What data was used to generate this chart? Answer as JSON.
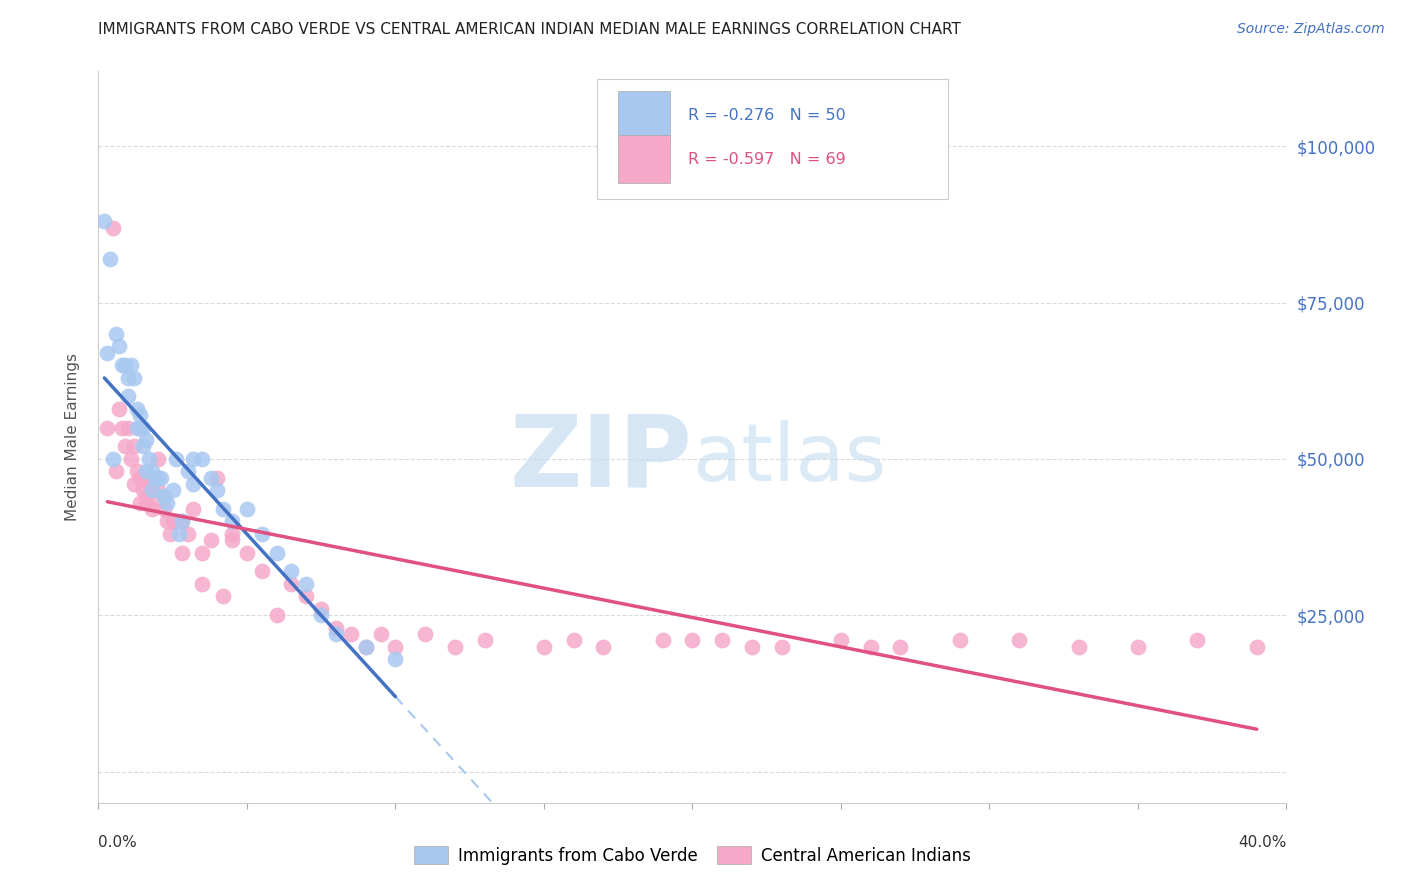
{
  "title": "IMMIGRANTS FROM CABO VERDE VS CENTRAL AMERICAN INDIAN MEDIAN MALE EARNINGS CORRELATION CHART",
  "source": "Source: ZipAtlas.com",
  "ylabel": "Median Male Earnings",
  "x_range": [
    0.0,
    0.4
  ],
  "y_range": [
    -5000,
    112000
  ],
  "y_ticks": [
    0,
    25000,
    50000,
    75000,
    100000
  ],
  "y_tick_labels": [
    "",
    "$25,000",
    "$50,000",
    "$75,000",
    "$100,000"
  ],
  "series1_color": "#A8C8F0",
  "series2_color": "#F5A8C8",
  "series1_line_color": "#4472C4",
  "series2_line_color": "#E05080",
  "dashed_line_color": "#A8C8F0",
  "right_label_color": "#4472C4",
  "cabo_verde_x": [
    0.002,
    0.004,
    0.006,
    0.007,
    0.008,
    0.009,
    0.01,
    0.011,
    0.012,
    0.013,
    0.013,
    0.014,
    0.015,
    0.015,
    0.016,
    0.017,
    0.018,
    0.019,
    0.02,
    0.021,
    0.022,
    0.023,
    0.025,
    0.026,
    0.028,
    0.03,
    0.032,
    0.035,
    0.038,
    0.04,
    0.042,
    0.045,
    0.05,
    0.055,
    0.06,
    0.065,
    0.07,
    0.075,
    0.08,
    0.09,
    0.003,
    0.005,
    0.01,
    0.014,
    0.016,
    0.018,
    0.022,
    0.027,
    0.032,
    0.1
  ],
  "cabo_verde_y": [
    88000,
    82000,
    70000,
    68000,
    65000,
    65000,
    63000,
    65000,
    63000,
    58000,
    55000,
    57000,
    55000,
    52000,
    53000,
    50000,
    48000,
    47000,
    47000,
    47000,
    44000,
    43000,
    45000,
    50000,
    40000,
    48000,
    50000,
    50000,
    47000,
    45000,
    42000,
    40000,
    42000,
    38000,
    35000,
    32000,
    30000,
    25000,
    22000,
    20000,
    67000,
    50000,
    60000,
    55000,
    48000,
    45000,
    44000,
    38000,
    46000,
    18000
  ],
  "central_american_x": [
    0.003,
    0.005,
    0.007,
    0.008,
    0.009,
    0.01,
    0.011,
    0.012,
    0.013,
    0.014,
    0.014,
    0.015,
    0.015,
    0.016,
    0.017,
    0.018,
    0.019,
    0.02,
    0.022,
    0.024,
    0.025,
    0.026,
    0.028,
    0.03,
    0.032,
    0.035,
    0.038,
    0.04,
    0.042,
    0.045,
    0.05,
    0.055,
    0.06,
    0.065,
    0.07,
    0.075,
    0.08,
    0.085,
    0.09,
    0.095,
    0.1,
    0.11,
    0.12,
    0.13,
    0.15,
    0.16,
    0.17,
    0.19,
    0.2,
    0.21,
    0.22,
    0.23,
    0.25,
    0.26,
    0.27,
    0.29,
    0.31,
    0.33,
    0.35,
    0.37,
    0.39,
    0.006,
    0.012,
    0.016,
    0.02,
    0.023,
    0.028,
    0.035,
    0.045
  ],
  "central_american_y": [
    55000,
    87000,
    58000,
    55000,
    52000,
    55000,
    50000,
    52000,
    48000,
    47000,
    43000,
    47000,
    45000,
    43000,
    46000,
    42000,
    43000,
    50000,
    42000,
    38000,
    40000,
    40000,
    40000,
    38000,
    42000,
    35000,
    37000,
    47000,
    28000,
    38000,
    35000,
    32000,
    25000,
    30000,
    28000,
    26000,
    23000,
    22000,
    20000,
    22000,
    20000,
    22000,
    20000,
    21000,
    20000,
    21000,
    20000,
    21000,
    21000,
    21000,
    20000,
    20000,
    21000,
    20000,
    20000,
    21000,
    21000,
    20000,
    20000,
    21000,
    20000,
    48000,
    46000,
    44000,
    45000,
    40000,
    35000,
    30000,
    37000
  ],
  "background_color": "#FFFFFF",
  "grid_color": "#CCCCCC",
  "legend1_R": "R = -0.276",
  "legend1_N": "N = 50",
  "legend2_R": "R = -0.597",
  "legend2_N": "N = 69",
  "legend1_series": "Immigrants from Cabo Verde",
  "legend2_series": "Central American Indians"
}
